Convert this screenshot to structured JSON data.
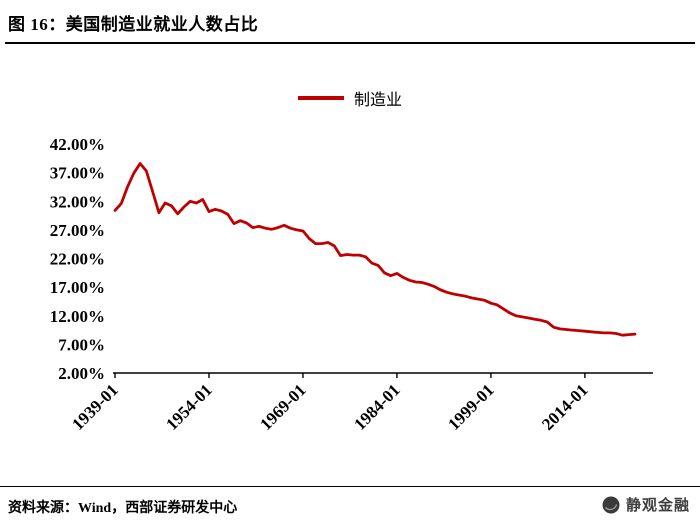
{
  "header": {
    "title": "图 16：美国制造业就业人数占比"
  },
  "legend": {
    "label": "制造业"
  },
  "footer": {
    "source": "资料来源：Wind，西部证券研发中心"
  },
  "watermark": {
    "label": "静观金融",
    "icon": "cloud-seal-icon"
  },
  "colors": {
    "line": "#c00000",
    "axis": "#000000",
    "background": "#ffffff"
  },
  "chart_data": {
    "type": "line",
    "title": "美国制造业就业人数占比",
    "legend_position": "top",
    "grid": false,
    "line_color": "#c00000",
    "ylim": [
      2,
      42
    ],
    "y_ticks": [
      42,
      37,
      32,
      27,
      22,
      17,
      12,
      7,
      2
    ],
    "y_tick_labels": [
      "42.00%",
      "37.00%",
      "32.00%",
      "27.00%",
      "22.00%",
      "17.00%",
      "12.00%",
      "7.00%",
      "2.00%"
    ],
    "x_ticks": [
      1939,
      1954,
      1969,
      1984,
      1999,
      2014
    ],
    "x_tick_labels": [
      "1939-01",
      "1954-01",
      "1969-01",
      "1984-01",
      "1999-01",
      "2014-01"
    ],
    "series": [
      {
        "name": "制造业",
        "x": [
          1939,
          1940,
          1941,
          1942,
          1943,
          1944,
          1945,
          1946,
          1947,
          1948,
          1949,
          1950,
          1951,
          1952,
          1953,
          1954,
          1955,
          1956,
          1957,
          1958,
          1959,
          1960,
          1961,
          1962,
          1963,
          1964,
          1965,
          1966,
          1967,
          1968,
          1969,
          1970,
          1971,
          1972,
          1973,
          1974,
          1975,
          1976,
          1977,
          1978,
          1979,
          1980,
          1981,
          1982,
          1983,
          1984,
          1985,
          1986,
          1987,
          1988,
          1989,
          1990,
          1991,
          1992,
          1993,
          1994,
          1995,
          1996,
          1997,
          1998,
          1999,
          2000,
          2001,
          2002,
          2003,
          2004,
          2005,
          2006,
          2007,
          2008,
          2009,
          2010,
          2011,
          2012,
          2013,
          2014,
          2015,
          2016,
          2017,
          2018,
          2019,
          2020,
          2021,
          2022
        ],
        "values": [
          30.4,
          31.6,
          34.5,
          36.9,
          38.6,
          37.3,
          33.7,
          30.0,
          31.7,
          31.2,
          29.8,
          31.0,
          32.0,
          31.7,
          32.3,
          30.2,
          30.6,
          30.3,
          29.7,
          28.1,
          28.6,
          28.2,
          27.4,
          27.6,
          27.3,
          27.1,
          27.4,
          27.8,
          27.3,
          27.0,
          26.8,
          25.5,
          24.6,
          24.6,
          24.8,
          24.2,
          22.5,
          22.7,
          22.6,
          22.6,
          22.3,
          21.2,
          20.8,
          19.5,
          19.0,
          19.4,
          18.7,
          18.2,
          17.9,
          17.8,
          17.5,
          17.1,
          16.5,
          16.1,
          15.8,
          15.6,
          15.4,
          15.1,
          14.9,
          14.7,
          14.2,
          13.9,
          13.2,
          12.5,
          12.0,
          11.8,
          11.6,
          11.4,
          11.2,
          10.9,
          10.0,
          9.7,
          9.6,
          9.5,
          9.4,
          9.3,
          9.2,
          9.1,
          9.0,
          9.0,
          8.9,
          8.6,
          8.7,
          8.8
        ]
      }
    ]
  }
}
